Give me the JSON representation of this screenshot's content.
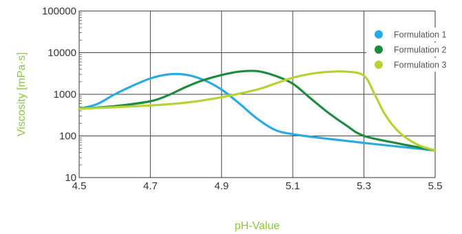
{
  "chart_data": {
    "type": "line",
    "title": "",
    "xlabel": "pH-Value",
    "ylabel": "Viscosity [mPa·s]",
    "xlim": [
      4.5,
      5.5
    ],
    "ylim": [
      10,
      100000
    ],
    "yscale": "log",
    "x_ticks": [
      4.5,
      4.7,
      4.9,
      5.1,
      5.3,
      5.5
    ],
    "x_tick_labels": [
      "4.5",
      "4.7",
      "4.9",
      "5.1",
      "5.3",
      "5.5"
    ],
    "y_ticks": [
      10,
      100,
      1000,
      10000,
      100000
    ],
    "y_tick_labels": [
      "10",
      "100",
      "1000",
      "10000",
      "100000"
    ],
    "grid": true,
    "legend_position": "top-right",
    "series": [
      {
        "name": "Formulation 1",
        "color": "#29abe2",
        "points": [
          [
            4.5,
            450
          ],
          [
            4.55,
            580
          ],
          [
            4.6,
            1000
          ],
          [
            4.65,
            1600
          ],
          [
            4.7,
            2400
          ],
          [
            4.75,
            3000
          ],
          [
            4.8,
            2950
          ],
          [
            4.85,
            2200
          ],
          [
            4.9,
            1300
          ],
          [
            4.95,
            600
          ],
          [
            5.0,
            260
          ],
          [
            5.05,
            140
          ],
          [
            5.1,
            110
          ],
          [
            5.2,
            85
          ],
          [
            5.3,
            68
          ],
          [
            5.4,
            55
          ],
          [
            5.5,
            45
          ]
        ]
      },
      {
        "name": "Formulation 2",
        "color": "#1e8b3e",
        "points": [
          [
            4.5,
            450
          ],
          [
            4.6,
            520
          ],
          [
            4.7,
            680
          ],
          [
            4.75,
            950
          ],
          [
            4.8,
            1500
          ],
          [
            4.85,
            2200
          ],
          [
            4.9,
            2900
          ],
          [
            4.95,
            3500
          ],
          [
            5.0,
            3600
          ],
          [
            5.05,
            2800
          ],
          [
            5.1,
            1800
          ],
          [
            5.15,
            800
          ],
          [
            5.2,
            360
          ],
          [
            5.25,
            180
          ],
          [
            5.3,
            100
          ],
          [
            5.4,
            65
          ],
          [
            5.5,
            45
          ]
        ]
      },
      {
        "name": "Formulation 3",
        "color": "#b5d334",
        "points": [
          [
            4.5,
            450
          ],
          [
            4.6,
            490
          ],
          [
            4.7,
            540
          ],
          [
            4.8,
            630
          ],
          [
            4.9,
            850
          ],
          [
            5.0,
            1300
          ],
          [
            5.05,
            1800
          ],
          [
            5.1,
            2500
          ],
          [
            5.15,
            3100
          ],
          [
            5.2,
            3450
          ],
          [
            5.25,
            3500
          ],
          [
            5.3,
            2800
          ],
          [
            5.33,
            1000
          ],
          [
            5.36,
            320
          ],
          [
            5.4,
            120
          ],
          [
            5.45,
            62
          ],
          [
            5.5,
            45
          ]
        ]
      }
    ]
  }
}
